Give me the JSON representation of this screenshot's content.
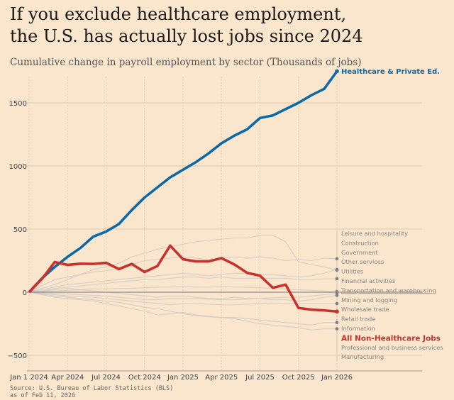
{
  "chart_data": {
    "type": "line",
    "title": "If you exclude healthcare employment,",
    "title_line2": "the U.S. has actually lost jobs since 2024",
    "subtitle": "Cumulative change in payroll employment by sector (Thousands of jobs)",
    "x": [
      "2024-01",
      "2024-02",
      "2024-03",
      "2024-04",
      "2024-05",
      "2024-06",
      "2024-07",
      "2024-08",
      "2024-09",
      "2024-10",
      "2024-11",
      "2024-12",
      "2025-01",
      "2025-02",
      "2025-03",
      "2025-04",
      "2025-05",
      "2025-06",
      "2025-07",
      "2025-08",
      "2025-09",
      "2025-10",
      "2025-11",
      "2025-12",
      "2026-01"
    ],
    "x_tick_labels": [
      "Jan 1 2024",
      "Apr 2024",
      "Jul 2024",
      "Oct 2024",
      "Jan 2025",
      "Apr 2025",
      "Jul 2025",
      "Oct 2025",
      "Jan 2026"
    ],
    "y_ticks": [
      -500,
      0,
      500,
      1000,
      1500
    ],
    "y_tick_labels": [
      "−500",
      "0",
      "500",
      "1000",
      "1500"
    ],
    "ylim": [
      -560,
      1850
    ],
    "grid": true,
    "series": [
      {
        "name": "Healthcare & Private Ed.",
        "color": "#0d6aa8",
        "highlight": true,
        "values": [
          0,
          110,
          200,
          280,
          350,
          440,
          480,
          540,
          650,
          750,
          830,
          910,
          970,
          1030,
          1100,
          1180,
          1240,
          1290,
          1380,
          1400,
          1450,
          1500,
          1560,
          1610,
          1750
        ]
      },
      {
        "name": "All Non-Healthcare Jobs",
        "color": "#c8312e",
        "highlight": true,
        "values": [
          0,
          105,
          239,
          216,
          226,
          224,
          233,
          183,
          224,
          160,
          207,
          369,
          261,
          244,
          244,
          270,
          220,
          153,
          131,
          35,
          60,
          -125,
          -138,
          -144,
          -153
        ]
      }
    ],
    "background_series": [
      [
        0,
        30,
        60,
        100,
        140,
        180,
        200,
        230,
        280,
        310,
        340,
        360,
        380,
        400,
        410,
        420,
        430,
        430,
        450,
        450,
        400,
        240,
        220,
        200,
        175
      ],
      [
        0,
        50,
        100,
        120,
        140,
        160,
        170,
        190,
        220,
        250,
        260,
        270,
        280,
        270,
        260,
        270,
        280,
        270,
        280,
        270,
        250,
        260,
        250,
        270,
        265
      ],
      [
        0,
        20,
        40,
        60,
        70,
        80,
        90,
        100,
        110,
        120,
        130,
        140,
        150,
        140,
        130,
        140,
        150,
        150,
        140,
        140,
        130,
        120,
        130,
        150,
        180
      ],
      [
        0,
        10,
        30,
        40,
        50,
        60,
        70,
        80,
        90,
        100,
        100,
        110,
        120,
        120,
        110,
        120,
        110,
        110,
        110,
        110,
        110,
        100,
        100,
        105,
        107
      ],
      [
        0,
        5,
        10,
        15,
        20,
        25,
        25,
        30,
        30,
        35,
        40,
        40,
        45,
        40,
        40,
        45,
        40,
        40,
        35,
        30,
        25,
        20,
        15,
        10,
        5
      ],
      [
        0,
        10,
        20,
        30,
        20,
        10,
        0,
        -10,
        -20,
        -30,
        -40,
        -30,
        -30,
        -40,
        -50,
        -50,
        -40,
        -50,
        -50,
        -60,
        -60,
        -70,
        -60,
        -40,
        -25
      ],
      [
        0,
        -5,
        -10,
        -15,
        -20,
        -25,
        -30,
        -40,
        -50,
        -60,
        -60,
        -50,
        -50,
        -50,
        -55,
        -60,
        -60,
        -55,
        -50,
        -45,
        -40,
        -40,
        -30,
        -20,
        -10
      ],
      [
        0,
        -10,
        -20,
        -30,
        -35,
        -40,
        -50,
        -60,
        -70,
        -80,
        -90,
        -100,
        -90,
        -90,
        -95,
        -100,
        -100,
        -95,
        -90,
        -85,
        -90,
        -90,
        -90,
        -90,
        -90
      ],
      [
        0,
        -20,
        -40,
        -50,
        -60,
        -70,
        -90,
        -110,
        -130,
        -150,
        -180,
        -170,
        -160,
        -180,
        -190,
        -200,
        -200,
        -210,
        -220,
        -230,
        -240,
        -250,
        -260,
        -240,
        -240
      ],
      [
        0,
        -15,
        -30,
        -40,
        -50,
        -60,
        -70,
        -80,
        -100,
        -120,
        -130,
        -150,
        -170,
        -185,
        -195,
        -200,
        -210,
        -230,
        -250,
        -260,
        -270,
        -280,
        -300,
        -290,
        -290
      ]
    ],
    "background_color": "#c9c6c2",
    "sector_labels": [
      "Leisure and hospitality",
      "Construction",
      "Government",
      "Other services",
      "Utilities",
      "Financial activities",
      "Transportation and warehousing",
      "Mining and logging",
      "Wholesale trade",
      "Retail trade",
      "Information",
      "All Non-Healthcare Jobs",
      "Professional and business services",
      "Manufacturing"
    ]
  },
  "source": "Source: U.S. Bureau of Labor Statistics (BLS)",
  "as_of": "as of Feb 11, 2026"
}
